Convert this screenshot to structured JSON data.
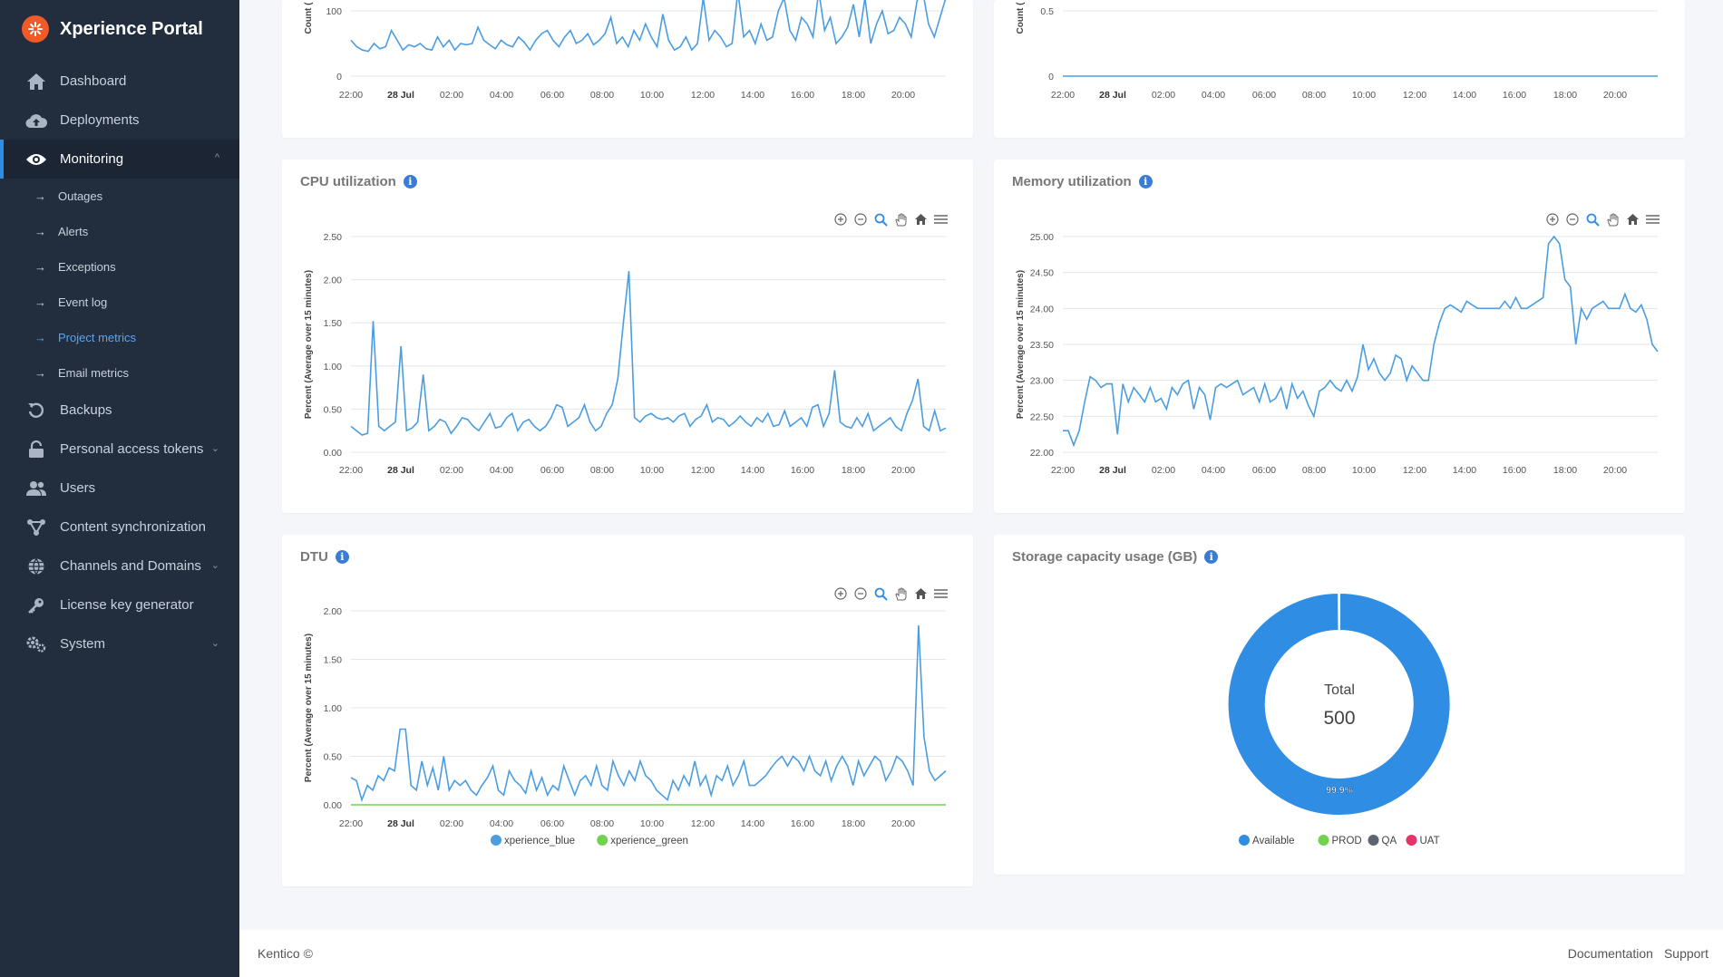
{
  "app": {
    "title": "Xperience Portal"
  },
  "nav": {
    "dashboard": "Dashboard",
    "deployments": "Deployments",
    "monitoring": "Monitoring",
    "sub": [
      "Outages",
      "Alerts",
      "Exceptions",
      "Event log",
      "Project metrics",
      "Email metrics"
    ],
    "backups": "Backups",
    "tokens": "Personal access tokens",
    "users": "Users",
    "content_sync": "Content synchronization",
    "channels": "Channels and Domains",
    "license": "License key generator",
    "system": "System"
  },
  "colors": {
    "accent": "#2f8de4",
    "line": "#4a9de0",
    "sidebar": "#222d3d"
  },
  "x_ticks": [
    "22:00",
    "28 Jul",
    "02:00",
    "04:00",
    "06:00",
    "08:00",
    "10:00",
    "12:00",
    "14:00",
    "16:00",
    "18:00",
    "20:00"
  ],
  "cards": {
    "cpu": {
      "title": "CPU utilization"
    },
    "memory": {
      "title": "Memory utilization"
    },
    "dtu": {
      "title": "DTU"
    },
    "storage": {
      "title": "Storage capacity usage (GB)",
      "total_label": "Total",
      "total_value": "500",
      "percent_label": "99.9%"
    }
  },
  "chart_data": [
    {
      "type": "line",
      "id": "count-left",
      "ylabel": "Count (",
      "y_ticks": [
        "0",
        "100"
      ],
      "ylim": [
        0,
        200
      ],
      "x_labels": [
        "22:00",
        "28 Jul",
        "02:00",
        "04:00",
        "06:00",
        "08:00",
        "10:00",
        "12:00",
        "14:00",
        "16:00",
        "18:00",
        "20:00"
      ],
      "values": [
        55,
        45,
        40,
        38,
        50,
        42,
        45,
        70,
        55,
        40,
        48,
        45,
        50,
        42,
        40,
        60,
        45,
        55,
        40,
        50,
        48,
        50,
        75,
        55,
        48,
        42,
        55,
        48,
        45,
        60,
        52,
        40,
        55,
        65,
        70,
        55,
        45,
        60,
        70,
        50,
        55,
        65,
        48,
        55,
        65,
        90,
        50,
        60,
        45,
        70,
        55,
        80,
        60,
        45,
        95,
        55,
        40,
        45,
        60,
        40,
        50,
        120,
        55,
        70,
        60,
        45,
        50,
        130,
        60,
        70,
        50,
        80,
        55,
        60,
        100,
        120,
        70,
        55,
        90,
        80,
        60,
        130,
        70,
        90,
        50,
        60,
        75,
        110,
        60,
        120,
        50,
        80,
        100,
        65,
        70,
        90,
        80,
        60,
        115,
        130,
        80,
        60,
        90,
        120
      ]
    },
    {
      "type": "line",
      "id": "count-right",
      "ylabel": "Count (",
      "y_ticks": [
        "0",
        "0.5"
      ],
      "ylim": [
        0,
        1
      ],
      "x_labels": [
        "22:00",
        "28 Jul",
        "02:00",
        "04:00",
        "06:00",
        "08:00",
        "10:00",
        "12:00",
        "14:00",
        "16:00",
        "18:00",
        "20:00"
      ],
      "values": [
        0,
        0
      ]
    },
    {
      "type": "line",
      "id": "cpu",
      "ylabel": "Percent (Average over 15 minutes)",
      "y_ticks": [
        "0.00",
        "0.50",
        "1.00",
        "1.50",
        "2.00",
        "2.50"
      ],
      "ylim": [
        0,
        2.5
      ],
      "x_labels": [
        "22:00",
        "28 Jul",
        "02:00",
        "04:00",
        "06:00",
        "08:00",
        "10:00",
        "12:00",
        "14:00",
        "16:00",
        "18:00",
        "20:00"
      ],
      "values": [
        0.3,
        0.25,
        0.2,
        0.22,
        1.52,
        0.3,
        0.25,
        0.3,
        0.35,
        1.23,
        0.25,
        0.28,
        0.35,
        0.9,
        0.25,
        0.3,
        0.38,
        0.35,
        0.22,
        0.3,
        0.4,
        0.38,
        0.3,
        0.25,
        0.35,
        0.45,
        0.28,
        0.3,
        0.4,
        0.45,
        0.25,
        0.35,
        0.38,
        0.3,
        0.25,
        0.3,
        0.4,
        0.55,
        0.52,
        0.3,
        0.35,
        0.4,
        0.55,
        0.35,
        0.25,
        0.3,
        0.45,
        0.55,
        0.85,
        1.5,
        2.1,
        0.4,
        0.35,
        0.42,
        0.45,
        0.4,
        0.38,
        0.4,
        0.35,
        0.42,
        0.45,
        0.3,
        0.38,
        0.42,
        0.55,
        0.35,
        0.4,
        0.38,
        0.3,
        0.35,
        0.42,
        0.35,
        0.3,
        0.4,
        0.35,
        0.45,
        0.3,
        0.32,
        0.48,
        0.3,
        0.35,
        0.4,
        0.3,
        0.52,
        0.55,
        0.3,
        0.45,
        0.95,
        0.35,
        0.3,
        0.28,
        0.4,
        0.3,
        0.45,
        0.25,
        0.3,
        0.35,
        0.4,
        0.3,
        0.25,
        0.45,
        0.6,
        0.85,
        0.3,
        0.25,
        0.48,
        0.25,
        0.28
      ]
    },
    {
      "type": "line",
      "id": "memory",
      "ylabel": "Percent (Average over 15 minutes)",
      "y_ticks": [
        "22.00",
        "22.50",
        "23.00",
        "23.50",
        "24.00",
        "24.50",
        "25.00"
      ],
      "ylim": [
        22,
        25
      ],
      "x_labels": [
        "22:00",
        "28 Jul",
        "02:00",
        "04:00",
        "06:00",
        "08:00",
        "10:00",
        "12:00",
        "14:00",
        "16:00",
        "18:00",
        "20:00"
      ],
      "values": [
        22.3,
        22.3,
        22.1,
        22.3,
        22.7,
        23.05,
        23.0,
        22.9,
        22.95,
        22.95,
        22.25,
        22.95,
        22.7,
        22.9,
        22.8,
        22.7,
        22.9,
        22.7,
        22.75,
        22.6,
        22.9,
        22.8,
        22.95,
        23.0,
        22.6,
        22.9,
        22.8,
        22.45,
        22.9,
        22.95,
        22.9,
        22.95,
        23.0,
        22.8,
        22.85,
        22.9,
        22.7,
        22.95,
        22.7,
        22.75,
        22.9,
        22.6,
        22.95,
        22.75,
        22.85,
        22.65,
        22.5,
        22.85,
        22.9,
        23.0,
        22.9,
        22.85,
        23.0,
        22.85,
        23.05,
        23.5,
        23.15,
        23.3,
        23.1,
        23.0,
        23.1,
        23.35,
        23.3,
        23.0,
        23.2,
        23.1,
        23.0,
        23.0,
        23.5,
        23.8,
        24.0,
        24.05,
        24.0,
        23.95,
        24.1,
        24.05,
        24.0,
        24.0,
        24.0,
        24.0,
        24.0,
        24.1,
        24.0,
        24.15,
        24.0,
        24.0,
        24.05,
        24.1,
        24.15,
        24.9,
        25.0,
        24.9,
        24.4,
        24.3,
        23.5,
        24.0,
        23.85,
        24.0,
        24.05,
        24.1,
        24.0,
        24.0,
        24.0,
        24.2,
        24.0,
        23.95,
        24.05,
        23.85,
        23.5,
        23.4
      ]
    },
    {
      "type": "line",
      "id": "dtu",
      "ylabel": "Percent (Average over 15 minutes)",
      "y_ticks": [
        "0.00",
        "0.50",
        "1.00",
        "1.50",
        "2.00"
      ],
      "ylim": [
        0,
        2
      ],
      "x_labels": [
        "22:00",
        "28 Jul",
        "02:00",
        "04:00",
        "06:00",
        "08:00",
        "10:00",
        "12:00",
        "14:00",
        "16:00",
        "18:00",
        "20:00"
      ],
      "legend_position": "bottom",
      "series": [
        {
          "name": "xperience_blue",
          "color": "#4a9de0",
          "values": [
            0.28,
            0.25,
            0.05,
            0.2,
            0.15,
            0.3,
            0.25,
            0.38,
            0.35,
            0.78,
            0.78,
            0.2,
            0.15,
            0.45,
            0.2,
            0.38,
            0.15,
            0.5,
            0.15,
            0.25,
            0.2,
            0.25,
            0.15,
            0.1,
            0.2,
            0.28,
            0.4,
            0.15,
            0.1,
            0.35,
            0.25,
            0.2,
            0.12,
            0.35,
            0.15,
            0.28,
            0.1,
            0.2,
            0.15,
            0.4,
            0.25,
            0.1,
            0.25,
            0.3,
            0.2,
            0.4,
            0.2,
            0.15,
            0.45,
            0.3,
            0.2,
            0.35,
            0.25,
            0.45,
            0.3,
            0.25,
            0.15,
            0.1,
            0.05,
            0.25,
            0.15,
            0.3,
            0.2,
            0.45,
            0.2,
            0.3,
            0.1,
            0.3,
            0.25,
            0.4,
            0.2,
            0.3,
            0.45,
            0.2,
            0.2,
            0.25,
            0.3,
            0.38,
            0.45,
            0.5,
            0.4,
            0.5,
            0.45,
            0.35,
            0.5,
            0.35,
            0.3,
            0.45,
            0.25,
            0.4,
            0.5,
            0.4,
            0.2,
            0.45,
            0.3,
            0.4,
            0.5,
            0.45,
            0.25,
            0.35,
            0.5,
            0.45,
            0.35,
            0.2,
            1.85,
            0.7,
            0.35,
            0.25,
            0.3,
            0.35
          ]
        },
        {
          "name": "xperience_green",
          "color": "#6fd34e",
          "values": [
            0,
            0
          ]
        }
      ]
    },
    {
      "type": "pie",
      "id": "storage",
      "title": "Storage capacity usage (GB)",
      "legend_position": "bottom",
      "slices": [
        {
          "label": "Available",
          "value": 99.9,
          "color": "#2f8de4"
        },
        {
          "label": "PROD",
          "value": 0.1,
          "color": "#6fd34e"
        },
        {
          "label": "QA",
          "value": 0,
          "color": "#5c6570"
        },
        {
          "label": "UAT",
          "value": 0,
          "color": "#e8336a"
        }
      ]
    }
  ],
  "footer": {
    "brand": "Kentico ©",
    "documentation": "Documentation",
    "support": "Support"
  }
}
